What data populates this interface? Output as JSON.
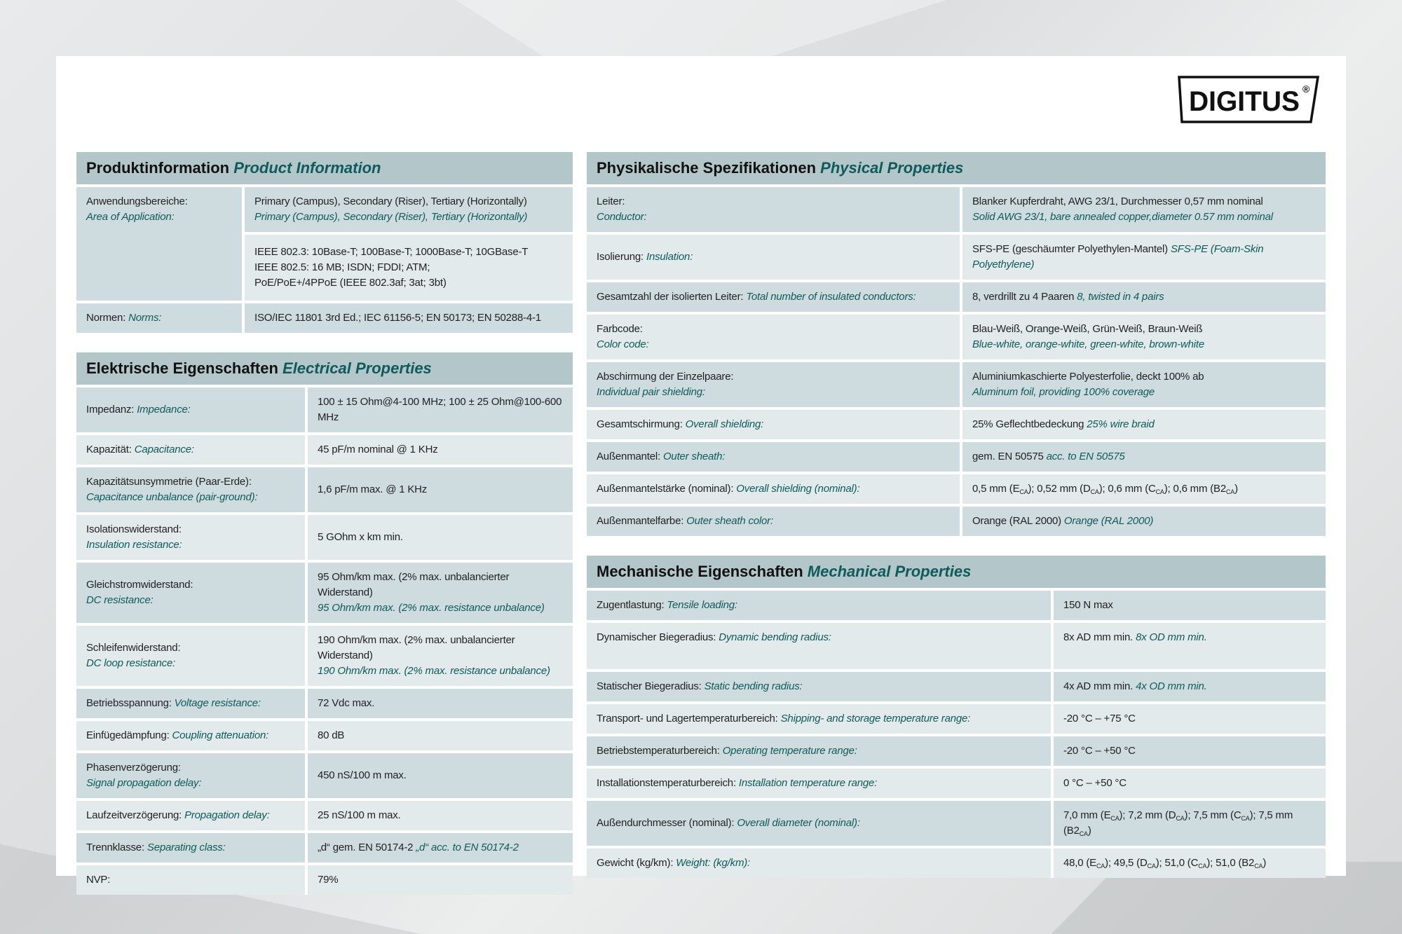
{
  "brand": {
    "logo_text": "DIGITUS",
    "registered": "®"
  },
  "colors": {
    "header_bg": "#b3c6ca",
    "row_dark": "#cfdcdf",
    "row_light": "#e2eaec",
    "accent_teal": "#0f5a5a"
  },
  "sections": {
    "product": {
      "title_de": "Produktinformation",
      "title_en": "Product Information",
      "rows": [
        {
          "de": "Anwendungsbereiche:",
          "en": "Area of Application:",
          "stack": true,
          "val": [
            "Primary (Campus), Secondary (Riser), Tertiary (Horizontally)"
          ],
          "val_en": "Primary (Campus), Secondary (Riser), Tertiary (Horizontally)",
          "val_stack": true,
          "rowspan": 2
        },
        {
          "cont": true,
          "val": [
            "IEEE 802.3: 10Base-T; 100Base-T; 1000Base-T; 10GBase-T"
          ],
          "val2": "IEEE 802.5: 16 MB; ISDN; FDDI; ATM;",
          "val3": "PoE/PoE+/4PPoE (IEEE 802.3af; 3at; 3bt)"
        },
        {
          "de": "Normen:",
          "en": "Norms:",
          "val": [
            "ISO/IEC 11801 3rd Ed.; IEC 61156-5; EN 50173; EN 50288-4-1"
          ]
        }
      ]
    },
    "electrical": {
      "title_de": "Elektrische Eigenschaften",
      "title_en": "Electrical Properties",
      "rows": [
        {
          "de": "Impedanz:",
          "en": "Impedance:",
          "val": [
            "100 ± 15 Ohm@4-100 MHz; 100 ± 25 Ohm@100-600 MHz"
          ]
        },
        {
          "de": "Kapazität:",
          "en": "Capacitance:",
          "val": [
            "45 pF/m nominal @ 1 KHz"
          ]
        },
        {
          "de": "Kapazitätsunsymmetrie (Paar-Erde):",
          "en": "Capacitance unbalance (pair-ground):",
          "stack": true,
          "val": [
            "1,6 pF/m max. @ 1 KHz"
          ]
        },
        {
          "de": "Isolationswiderstand:",
          "en": "Insulation resistance:",
          "stack": true,
          "val": [
            "5 GOhm x km min."
          ]
        },
        {
          "de": "Gleichstromwiderstand:",
          "en": "DC resistance:",
          "stack": true,
          "val": [
            "95 Ohm/km max. (2% max. unbalancierter Widerstand)"
          ],
          "val_en": "95 Ohm/km max. (2% max. resistance unbalance)",
          "val_stack": true
        },
        {
          "de": "Schleifenwiderstand:",
          "en": "DC loop resistance:",
          "stack": true,
          "val": [
            "190 Ohm/km max. (2% max. unbalancierter Widerstand)"
          ],
          "val_en": "190 Ohm/km max. (2% max. resistance unbalance)",
          "val_stack": true
        },
        {
          "de": "Betriebsspannung:",
          "en": "Voltage resistance:",
          "val": [
            "72 Vdc max."
          ]
        },
        {
          "de": "Einfügedämpfung:",
          "en": "Coupling attenuation:",
          "val": [
            "80 dB"
          ]
        },
        {
          "de": "Phasenverzögerung:",
          "en": "Signal propagation delay:",
          "stack": true,
          "val": [
            "450 nS/100 m max."
          ]
        },
        {
          "de": "Laufzeitverzögerung:",
          "en": "Propagation delay:",
          "val": [
            "25 nS/100 m max."
          ]
        },
        {
          "de": "Trennklasse:",
          "en": "Separating class:",
          "val": [
            "„d“ gem. EN 50174-2"
          ],
          "val_en": "„d“ acc. to EN 50174-2"
        },
        {
          "de": "NVP:",
          "val": [
            "79%"
          ]
        }
      ]
    },
    "physical": {
      "title_de": "Physikalische Spezifikationen",
      "title_en": "Physical Properties",
      "rows": [
        {
          "de": "Leiter:",
          "en": "Conductor:",
          "stack": true,
          "val": [
            "Blanker Kupferdraht, AWG 23/1, Durchmesser 0,57 mm nominal"
          ],
          "val_en": "Solid AWG 23/1, bare annealed copper,diameter 0.57 mm nominal",
          "val_stack": true
        },
        {
          "de": "Isolierung:",
          "en": "Insulation:",
          "val": [
            "SFS-PE (geschäumter Polyethylen-Mantel)"
          ],
          "val_en": "SFS-PE (Foam-Skin Polyethylene)"
        },
        {
          "de": "Gesamtzahl der isolierten Leiter:",
          "en": "Total number of insulated conductors:",
          "val": [
            "8, verdrillt zu 4 Paaren"
          ],
          "val_en": "8, twisted in 4 pairs"
        },
        {
          "de": "Farbcode:",
          "en": "Color code:",
          "stack": true,
          "val": [
            "Blau-Weiß, Orange-Weiß, Grün-Weiß, Braun-Weiß"
          ],
          "val_en": "Blue-white, orange-white, green-white, brown-white",
          "val_stack": true
        },
        {
          "de": "Abschirmung der Einzelpaare:",
          "en": "Individual pair shielding:",
          "stack": true,
          "val": [
            "Aluminiumkaschierte Polyesterfolie, deckt 100% ab"
          ],
          "val_en": "Aluminum foil, providing 100% coverage",
          "val_stack": true
        },
        {
          "de": "Gesamtschirmung:",
          "en": "Overall shielding:",
          "val": [
            "25% Geflechtbedeckung"
          ],
          "val_en": "25% wire braid"
        },
        {
          "de": "Außenmantel:",
          "en": "Outer sheath:",
          "val": [
            "gem. EN 50575"
          ],
          "val_en": "acc. to EN 50575"
        },
        {
          "de": "Außenmantelstärke (nominal):",
          "en": "Overall shielding (nominal):",
          "val": [
            "0,5 mm (E",
            {
              "sub": "CA"
            },
            "); 0,52 mm (D",
            {
              "sub": "CA"
            },
            "); 0,6 mm (C",
            {
              "sub": "CA"
            },
            "); 0,6 mm (B2",
            {
              "sub": "CA"
            },
            ")"
          ]
        },
        {
          "de": "Außenmantelfarbe:",
          "en": "Outer sheath color:",
          "val": [
            "Orange (RAL 2000)"
          ],
          "val_en": "Orange (RAL 2000)"
        }
      ]
    },
    "mechanical": {
      "title_de": "Mechanische Eigenschaften",
      "title_en": "Mechanical Properties",
      "rows": [
        {
          "de": "Zugentlastung:",
          "en": "Tensile loading:",
          "val": [
            "150 N max"
          ]
        },
        {
          "de": "Dynamischer Biegeradius:",
          "en": "Dynamic bending radius:",
          "tall": true,
          "val": [
            "8x AD mm min."
          ],
          "val_en": "8x OD mm min."
        },
        {
          "de": "Statischer Biegeradius:",
          "en": "Static bending radius:",
          "val": [
            "4x AD mm min."
          ],
          "val_en": "4x OD mm min."
        },
        {
          "de": "Transport- und Lagertemperaturbereich:",
          "en": "Shipping- and storage temperature range:",
          "val": [
            "-20 °C – +75 °C"
          ]
        },
        {
          "de": "Betriebstemperaturbereich:",
          "en": "Operating temperature range:",
          "val": [
            "-20 °C – +50 °C"
          ]
        },
        {
          "de": "Installationstemperaturbereich:",
          "en": "Installation temperature range:",
          "val": [
            "0 °C – +50 °C"
          ]
        },
        {
          "de": "Außendurchmesser (nominal):",
          "en": "Overall diameter (nominal):",
          "val": [
            "7,0 mm (E",
            {
              "sub": "CA"
            },
            "); 7,2 mm (D",
            {
              "sub": "CA"
            },
            "); 7,5 mm (C",
            {
              "sub": "CA"
            },
            "); 7,5 mm (B2",
            {
              "sub": "CA"
            },
            ")"
          ]
        },
        {
          "de": "Gewicht (kg/km):",
          "en": "Weight: (kg/km):",
          "val": [
            "48,0 (E",
            {
              "sub": "CA"
            },
            "); 49,5 (D",
            {
              "sub": "CA"
            },
            "); 51,0 (C",
            {
              "sub": "CA"
            },
            "); 51,0 (B2",
            {
              "sub": "CA"
            },
            ")"
          ]
        }
      ]
    }
  }
}
